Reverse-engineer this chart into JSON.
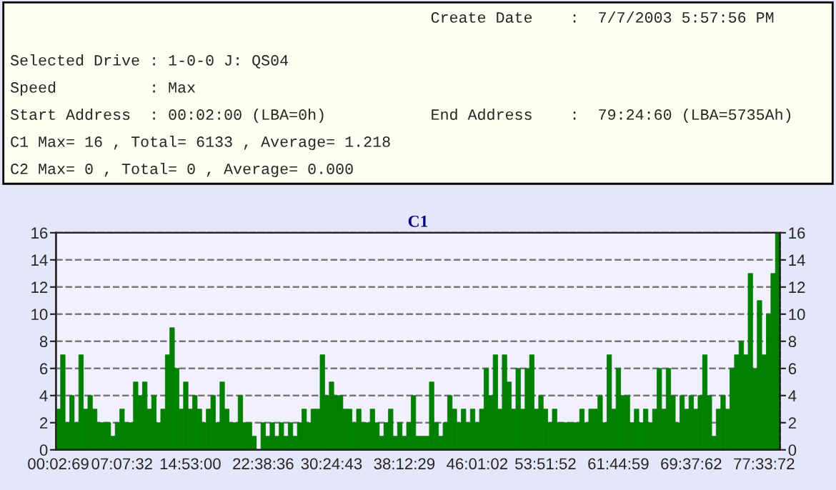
{
  "chart_data": {
    "type": "bar",
    "title": "C1",
    "annotations": [
      "Create Date    :  7/7/2003 5:57:56 PM",
      "Selected Drive : 1-0-0 J: QS04",
      "Speed          : Max",
      "Start Address  : 00:02:00 (LBA=0h)",
      "End Address    :  79:24:60 (LBA=5735Ah)",
      "C1 Max= 16 , Total= 6133 , Average= 1.218",
      "C2 Max= 0 , Total= 0 , Average= 0.000"
    ],
    "categories": [
      "00:02:69",
      null,
      null,
      null,
      null,
      null,
      null,
      null,
      null,
      null,
      null,
      null,
      null,
      null,
      "07:07:32",
      null,
      null,
      null,
      null,
      null,
      null,
      null,
      null,
      null,
      null,
      null,
      null,
      null,
      null,
      "14:53:00",
      null,
      null,
      null,
      null,
      null,
      null,
      null,
      null,
      null,
      null,
      null,
      null,
      null,
      null,
      null,
      "22:38:36",
      null,
      null,
      null,
      null,
      null,
      null,
      null,
      null,
      null,
      null,
      null,
      null,
      null,
      null,
      "30:24:43",
      null,
      null,
      null,
      null,
      null,
      null,
      null,
      null,
      null,
      null,
      null,
      null,
      null,
      null,
      null,
      "38:12:29",
      null,
      null,
      null,
      null,
      null,
      null,
      null,
      null,
      null,
      null,
      null,
      null,
      null,
      null,
      null,
      "46:01:02",
      null,
      null,
      null,
      null,
      null,
      null,
      null,
      null,
      null,
      null,
      null,
      null,
      null,
      null,
      "53:51:52",
      null,
      null,
      null,
      null,
      null,
      null,
      null,
      null,
      null,
      null,
      null,
      null,
      null,
      null,
      null,
      "61:44:59",
      null,
      null,
      null,
      null,
      null,
      null,
      null,
      null,
      null,
      null,
      null,
      null,
      null,
      null,
      null,
      "69:37:62",
      null,
      null,
      null,
      null,
      null,
      null,
      null,
      null,
      null,
      null,
      null,
      null,
      null,
      null,
      null,
      "77:33:72",
      null,
      null,
      null
    ],
    "series": [
      {
        "color": "#008000",
        "values": [
          3,
          7,
          2,
          4,
          2,
          7,
          3,
          4,
          3,
          2,
          2,
          2,
          1,
          2,
          3,
          2,
          2,
          5,
          4,
          5,
          3,
          4,
          2,
          3,
          7,
          9,
          6,
          3,
          5,
          3,
          4,
          3,
          2,
          3,
          4,
          2,
          5,
          3,
          2,
          2,
          4,
          2,
          2,
          1,
          0,
          2,
          1,
          2,
          1,
          2,
          1,
          2,
          1,
          2,
          3,
          2,
          3,
          3,
          7,
          4,
          5,
          4,
          4,
          3,
          3,
          2,
          3,
          2,
          2,
          3,
          2,
          1,
          2,
          3,
          1,
          2,
          1,
          2,
          4,
          1,
          1,
          1,
          5,
          2,
          1,
          2,
          4,
          3,
          2,
          3,
          2,
          3,
          2,
          3,
          6,
          4,
          7,
          3,
          7,
          5,
          3,
          6,
          3,
          6,
          7,
          3,
          4,
          3,
          2,
          3,
          2,
          2,
          2,
          2,
          2,
          3,
          2,
          3,
          3,
          4,
          2,
          7,
          3,
          6,
          4,
          4,
          2,
          3,
          2,
          3,
          2,
          3,
          6,
          3,
          6,
          4,
          2,
          4,
          3,
          4,
          3,
          4,
          7,
          4,
          1,
          3,
          4,
          3,
          6,
          7,
          8,
          7,
          13,
          6,
          11,
          7,
          10,
          13,
          16
        ]
      }
    ],
    "ylim": [
      0,
      16
    ],
    "yticks": [
      0,
      2,
      4,
      6,
      8,
      10,
      12,
      14,
      16
    ],
    "y2lim": [
      0,
      16
    ],
    "y2ticks": [
      0,
      2,
      4,
      6,
      8,
      10,
      12,
      14,
      16
    ],
    "grid": "y"
  }
}
